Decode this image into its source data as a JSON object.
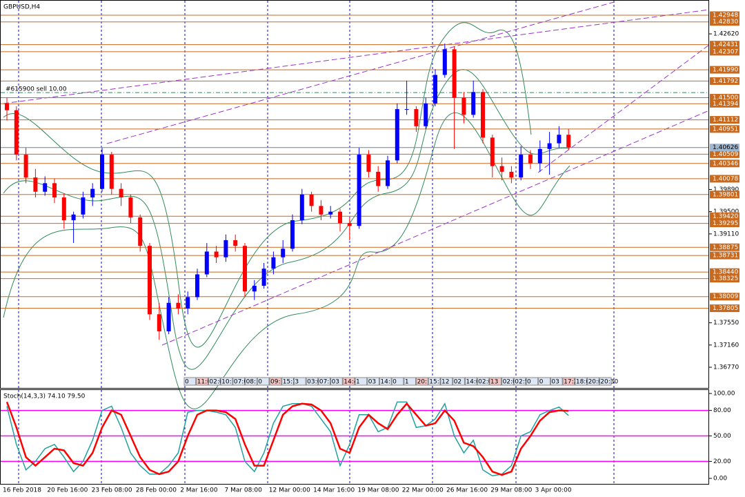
{
  "chart_data": [
    {
      "type": "candlestick",
      "title": "GBPUSD,H4",
      "annotation": "#615900 sell 10.00",
      "order_level": 1.4159,
      "up_color": "#0000ff",
      "down_color": "#ff0000",
      "level_color": "#c8691e",
      "current_price": {
        "value": 1.40626,
        "label": "1.40626"
      },
      "ylim": [
        1.36407,
        1.43166
      ],
      "yticks": [
        {
          "value": 1.4262,
          "label": "1.42620"
        },
        {
          "value": 1.3989,
          "label": "1.39890"
        },
        {
          "value": 1.395,
          "label": "1.39500"
        },
        {
          "value": 1.3911,
          "label": "1.39110"
        },
        {
          "value": 1.3755,
          "label": "1.37550"
        },
        {
          "value": 1.3716,
          "label": "1.37160"
        },
        {
          "value": 1.3677,
          "label": "1.36770"
        }
      ],
      "levels": [
        {
          "value": 1.42948,
          "label": "1.42948"
        },
        {
          "value": 1.4283,
          "label": "1.42830"
        },
        {
          "value": 1.42431,
          "label": "1.42431"
        },
        {
          "value": 1.42307,
          "label": "1.42307"
        },
        {
          "value": 1.4199,
          "label": "1.41990"
        },
        {
          "value": 1.41792,
          "label": "1.41792"
        },
        {
          "value": 1.415,
          "label": "1.41500"
        },
        {
          "value": 1.41394,
          "label": "1.41394"
        },
        {
          "value": 1.41112,
          "label": "1.41112"
        },
        {
          "value": 1.40951,
          "label": "1.40951"
        },
        {
          "value": 1.40509,
          "label": "1.40509"
        },
        {
          "value": 1.40346,
          "label": "1.40346"
        },
        {
          "value": 1.40078,
          "label": "1.40078"
        },
        {
          "value": 1.39801,
          "label": "1.39801"
        },
        {
          "value": 1.3942,
          "label": "1.39420"
        },
        {
          "value": 1.39295,
          "label": "1.39295"
        },
        {
          "value": 1.38875,
          "label": "1.38875"
        },
        {
          "value": 1.38731,
          "label": "1.38731"
        },
        {
          "value": 1.3844,
          "label": "1.38440"
        },
        {
          "value": 1.38325,
          "label": "1.38325"
        },
        {
          "value": 1.38009,
          "label": "1.38009"
        },
        {
          "value": 1.37805,
          "label": "1.37805"
        }
      ],
      "time_tags": [
        "0",
        "11:0",
        "02:0",
        "10:",
        "07:0",
        "08:",
        "0",
        "09:",
        "15:30",
        "3",
        "03:00",
        "07:3",
        "03",
        "14:45",
        "1",
        "03",
        "14:",
        "0",
        "1",
        "20:",
        "15:3",
        "12",
        "02",
        "14:00",
        "02:0",
        "13",
        "02:0",
        "02:5",
        "0",
        "0",
        "03",
        "17:20",
        "18:0",
        "20:0",
        "20:30"
      ],
      "xticks": [
        "16 Feb 2018",
        "20 Feb 16:00",
        "23 Feb 08:00",
        "28 Feb 00:00",
        "2 Mar 16:00",
        "7 Mar 08:00",
        "12 Mar 00:00",
        "14 Mar 16:00",
        "19 Mar 08:00",
        "22 Mar 00:00",
        "26 Mar 16:00",
        "29 Mar 08:00",
        "3 Apr 00:00"
      ],
      "candles": [
        [
          1.414,
          1.415,
          1.411,
          1.4128
        ],
        [
          1.4128,
          1.4135,
          1.404,
          1.405
        ],
        [
          1.405,
          1.4062,
          1.4,
          1.401
        ],
        [
          1.401,
          1.4025,
          1.3975,
          1.3985
        ],
        [
          1.3985,
          1.4012,
          1.3978,
          1.4
        ],
        [
          1.4,
          1.4008,
          1.3965,
          1.3975
        ],
        [
          1.3975,
          1.3982,
          1.392,
          1.3935
        ],
        [
          1.3935,
          1.395,
          1.3895,
          1.3945
        ],
        [
          1.3945,
          1.3985,
          1.3938,
          1.3975
        ],
        [
          1.3975,
          1.4,
          1.396,
          1.399
        ],
        [
          1.399,
          1.4062,
          1.3985,
          1.405
        ],
        [
          1.405,
          1.4055,
          1.398,
          1.399
        ],
        [
          1.399,
          1.4,
          1.396,
          1.3975
        ],
        [
          1.3975,
          1.398,
          1.393,
          1.394
        ],
        [
          1.394,
          1.3945,
          1.388,
          1.389
        ],
        [
          1.389,
          1.3895,
          1.376,
          1.377
        ],
        [
          1.377,
          1.379,
          1.3725,
          1.374
        ],
        [
          1.374,
          1.38,
          1.3735,
          1.379
        ],
        [
          1.379,
          1.3805,
          1.377,
          1.378
        ],
        [
          1.378,
          1.381,
          1.377,
          1.38
        ],
        [
          1.38,
          1.385,
          1.3795,
          1.384
        ],
        [
          1.384,
          1.3895,
          1.3835,
          1.388
        ],
        [
          1.388,
          1.389,
          1.386,
          1.387
        ],
        [
          1.387,
          1.391,
          1.3862,
          1.39
        ],
        [
          1.39,
          1.391,
          1.388,
          1.389
        ],
        [
          1.389,
          1.3895,
          1.38,
          1.381
        ],
        [
          1.381,
          1.383,
          1.3795,
          1.382
        ],
        [
          1.382,
          1.386,
          1.3815,
          1.385
        ],
        [
          1.385,
          1.388,
          1.384,
          1.387
        ],
        [
          1.387,
          1.39,
          1.386,
          1.3885
        ],
        [
          1.3885,
          1.3945,
          1.388,
          1.3935
        ],
        [
          1.3935,
          1.399,
          1.3928,
          1.398
        ],
        [
          1.398,
          1.3985,
          1.395,
          1.396
        ],
        [
          1.396,
          1.397,
          1.3935,
          1.3945
        ],
        [
          1.3945,
          1.396,
          1.3938,
          1.395
        ],
        [
          1.395,
          1.3955,
          1.3915,
          1.393
        ],
        [
          1.393,
          1.394,
          1.39,
          1.3925
        ],
        [
          1.3925,
          1.4062,
          1.392,
          1.405
        ],
        [
          1.405,
          1.4058,
          1.401,
          1.402
        ],
        [
          1.402,
          1.403,
          1.3985,
          1.3995
        ],
        [
          1.3995,
          1.4048,
          1.399,
          1.404
        ],
        [
          1.404,
          1.414,
          1.4035,
          1.413
        ],
        [
          1.413,
          1.418,
          1.412,
          1.413
        ],
        [
          1.413,
          1.4135,
          1.409,
          1.41
        ],
        [
          1.41,
          1.415,
          1.4095,
          1.414
        ],
        [
          1.414,
          1.42,
          1.4135,
          1.419
        ],
        [
          1.419,
          1.4245,
          1.4185,
          1.4235
        ],
        [
          1.4235,
          1.424,
          1.406,
          1.415
        ],
        [
          1.415,
          1.416,
          1.4105,
          1.412
        ],
        [
          1.412,
          1.418,
          1.4115,
          1.416
        ],
        [
          1.416,
          1.4165,
          1.407,
          1.408
        ],
        [
          1.408,
          1.4085,
          1.401,
          1.403
        ],
        [
          1.403,
          1.4045,
          1.4005,
          1.402
        ],
        [
          1.402,
          1.403,
          1.4,
          1.401
        ],
        [
          1.401,
          1.4065,
          1.4005,
          1.405
        ],
        [
          1.405,
          1.4058,
          1.4025,
          1.4035
        ],
        [
          1.4035,
          1.4075,
          1.402,
          1.406
        ],
        [
          1.406,
          1.409,
          1.4015,
          1.407
        ],
        [
          1.407,
          1.41,
          1.4062,
          1.4085
        ],
        [
          1.4085,
          1.4095,
          1.4058,
          1.4063
        ]
      ]
    },
    {
      "type": "line",
      "title": "Stoch(14,3,3) 74.10 79.50",
      "ylim": [
        -7.3,
        104.1
      ],
      "yticks": [
        {
          "value": 100,
          "label": "100.00"
        },
        {
          "value": 80,
          "label": "80.00"
        },
        {
          "value": 50,
          "label": "50.00"
        },
        {
          "value": 20,
          "label": "20.00"
        },
        {
          "value": 0,
          "label": "0.00"
        }
      ],
      "levels": [
        80,
        50,
        20
      ],
      "level_color": "#ff00ff",
      "series": [
        {
          "color": "#20a0a0",
          "values": [
            85,
            40,
            10,
            20,
            35,
            40,
            25,
            8,
            20,
            45,
            80,
            85,
            60,
            30,
            15,
            5,
            5,
            15,
            30,
            78,
            80,
            80,
            78,
            75,
            60,
            20,
            8,
            30,
            65,
            85,
            88,
            88,
            85,
            70,
            55,
            15,
            40,
            75,
            75,
            55,
            60,
            90,
            90,
            60,
            62,
            70,
            88,
            50,
            30,
            45,
            10,
            3,
            5,
            15,
            50,
            55,
            75,
            80,
            84,
            74.1
          ]
        },
        {
          "color": "#ff0000",
          "values": [
            90,
            60,
            25,
            15,
            25,
            35,
            33,
            18,
            15,
            30,
            60,
            80,
            75,
            50,
            25,
            10,
            5,
            8,
            20,
            50,
            75,
            80,
            80,
            78,
            70,
            40,
            15,
            15,
            45,
            75,
            85,
            88,
            87,
            80,
            65,
            35,
            30,
            60,
            75,
            65,
            58,
            75,
            88,
            75,
            62,
            65,
            80,
            68,
            42,
            38,
            25,
            8,
            4,
            8,
            35,
            50,
            68,
            78,
            80,
            79.5
          ]
        }
      ]
    }
  ]
}
